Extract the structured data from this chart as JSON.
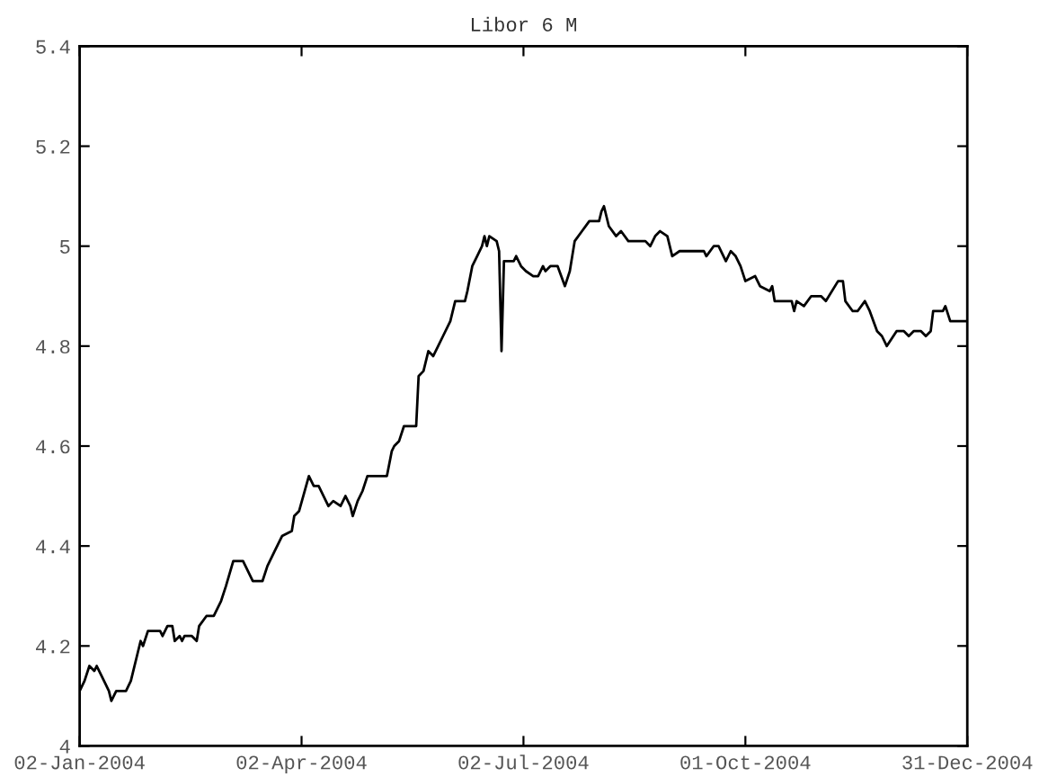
{
  "chart_data": {
    "type": "line",
    "title": "Libor 6 M",
    "x": [
      "2004-01-02",
      "2004-01-04",
      "2004-01-06",
      "2004-01-08",
      "2004-01-09",
      "2004-01-11",
      "2004-01-14",
      "2004-01-15",
      "2004-01-17",
      "2004-01-19",
      "2004-01-21",
      "2004-01-23",
      "2004-01-27",
      "2004-01-28",
      "2004-01-30",
      "2004-02-04",
      "2004-02-05",
      "2004-02-07",
      "2004-02-09",
      "2004-02-10",
      "2004-02-12",
      "2004-02-13",
      "2004-02-14",
      "2004-02-17",
      "2004-02-19",
      "2004-02-20",
      "2004-02-23",
      "2004-02-26",
      "2004-02-29",
      "2004-03-02",
      "2004-03-05",
      "2004-03-08",
      "2004-03-09",
      "2004-03-10",
      "2004-03-13",
      "2004-03-17",
      "2004-03-19",
      "2004-03-22",
      "2004-03-25",
      "2004-03-29",
      "2004-03-30",
      "2004-04-01",
      "2004-04-05",
      "2004-04-07",
      "2004-04-09",
      "2004-04-12",
      "2004-04-13",
      "2004-04-15",
      "2004-04-18",
      "2004-04-20",
      "2004-04-22",
      "2004-04-23",
      "2004-04-25",
      "2004-04-27",
      "2004-04-29",
      "2004-05-07",
      "2004-05-09",
      "2004-05-10",
      "2004-05-12",
      "2004-05-14",
      "2004-05-19",
      "2004-05-20",
      "2004-05-22",
      "2004-05-24",
      "2004-05-26",
      "2004-05-28",
      "2004-05-30",
      "2004-06-02",
      "2004-06-04",
      "2004-06-08",
      "2004-06-09",
      "2004-06-11",
      "2004-06-13",
      "2004-06-15",
      "2004-06-16",
      "2004-06-17",
      "2004-06-18",
      "2004-06-21",
      "2004-06-22",
      "2004-06-23",
      "2004-06-24",
      "2004-06-28",
      "2004-06-29",
      "2004-07-01",
      "2004-07-03",
      "2004-07-06",
      "2004-07-08",
      "2004-07-10",
      "2004-07-11",
      "2004-07-13",
      "2004-07-16",
      "2004-07-19",
      "2004-07-21",
      "2004-07-23",
      "2004-07-26",
      "2004-07-29",
      "2004-08-02",
      "2004-08-03",
      "2004-08-04",
      "2004-08-06",
      "2004-08-09",
      "2004-08-11",
      "2004-08-14",
      "2004-08-17",
      "2004-08-21",
      "2004-08-23",
      "2004-08-25",
      "2004-08-27",
      "2004-08-30",
      "2004-09-01",
      "2004-09-04",
      "2004-09-07",
      "2004-09-14",
      "2004-09-15",
      "2004-09-18",
      "2004-09-20",
      "2004-09-23",
      "2004-09-25",
      "2004-09-27",
      "2004-09-29",
      "2004-10-01",
      "2004-10-05",
      "2004-10-07",
      "2004-10-11",
      "2004-10-12",
      "2004-10-13",
      "2004-10-15",
      "2004-10-20",
      "2004-10-21",
      "2004-10-22",
      "2004-10-25",
      "2004-10-28",
      "2004-11-01",
      "2004-11-03",
      "2004-11-08",
      "2004-11-10",
      "2004-11-11",
      "2004-11-14",
      "2004-11-16",
      "2004-11-19",
      "2004-11-21",
      "2004-11-24",
      "2004-11-26",
      "2004-11-28",
      "2004-12-02",
      "2004-12-05",
      "2004-12-07",
      "2004-12-09",
      "2004-12-12",
      "2004-12-14",
      "2004-12-16",
      "2004-12-17",
      "2004-12-21",
      "2004-12-22",
      "2004-12-24",
      "2004-12-31"
    ],
    "series": [
      {
        "color": "#000000",
        "values": [
          4.11,
          4.13,
          4.16,
          4.15,
          4.16,
          4.14,
          4.11,
          4.09,
          4.11,
          4.11,
          4.11,
          4.13,
          4.21,
          4.2,
          4.23,
          4.23,
          4.22,
          4.24,
          4.24,
          4.21,
          4.22,
          4.21,
          4.22,
          4.22,
          4.21,
          4.24,
          4.26,
          4.26,
          4.29,
          4.32,
          4.37,
          4.37,
          4.37,
          4.36,
          4.33,
          4.33,
          4.36,
          4.39,
          4.42,
          4.43,
          4.46,
          4.47,
          4.54,
          4.52,
          4.52,
          4.49,
          4.48,
          4.49,
          4.48,
          4.5,
          4.48,
          4.46,
          4.49,
          4.51,
          4.54,
          4.54,
          4.59,
          4.6,
          4.61,
          4.64,
          4.64,
          4.74,
          4.75,
          4.79,
          4.78,
          4.8,
          4.82,
          4.85,
          4.89,
          4.89,
          4.91,
          4.96,
          4.98,
          5.0,
          5.02,
          5.0,
          5.02,
          5.01,
          4.99,
          4.79,
          4.97,
          4.97,
          4.98,
          4.96,
          4.95,
          4.94,
          4.94,
          4.96,
          4.95,
          4.96,
          4.96,
          4.92,
          4.95,
          5.01,
          5.03,
          5.05,
          5.05,
          5.07,
          5.08,
          5.04,
          5.02,
          5.03,
          5.01,
          5.01,
          5.01,
          5.0,
          5.02,
          5.03,
          5.02,
          4.98,
          4.99,
          4.99,
          4.99,
          4.98,
          5.0,
          5.0,
          4.97,
          4.99,
          4.98,
          4.96,
          4.93,
          4.94,
          4.92,
          4.91,
          4.92,
          4.89,
          4.89,
          4.89,
          4.87,
          4.89,
          4.88,
          4.9,
          4.9,
          4.89,
          4.93,
          4.93,
          4.89,
          4.87,
          4.87,
          4.89,
          4.87,
          4.83,
          4.82,
          4.8,
          4.83,
          4.83,
          4.82,
          4.83,
          4.83,
          4.82,
          4.83,
          4.87,
          4.87,
          4.88,
          4.85,
          4.85
        ]
      }
    ],
    "xlim": [
      "2004-01-02",
      "2004-12-31"
    ],
    "xticks": [
      {
        "value": "2004-01-02",
        "label": "02-Jan-2004"
      },
      {
        "value": "2004-04-02",
        "label": "02-Apr-2004"
      },
      {
        "value": "2004-07-02",
        "label": "02-Jul-2004"
      },
      {
        "value": "2004-10-01",
        "label": "01-Oct-2004"
      },
      {
        "value": "2004-12-31",
        "label": "31-Dec-2004"
      }
    ],
    "ylim": [
      4,
      5.4
    ],
    "yticks": [
      4,
      4.2,
      4.4,
      4.6,
      4.8,
      5,
      5.2,
      5.4
    ],
    "grid": false,
    "legend": false,
    "marker": "none",
    "line_style": "solid"
  }
}
